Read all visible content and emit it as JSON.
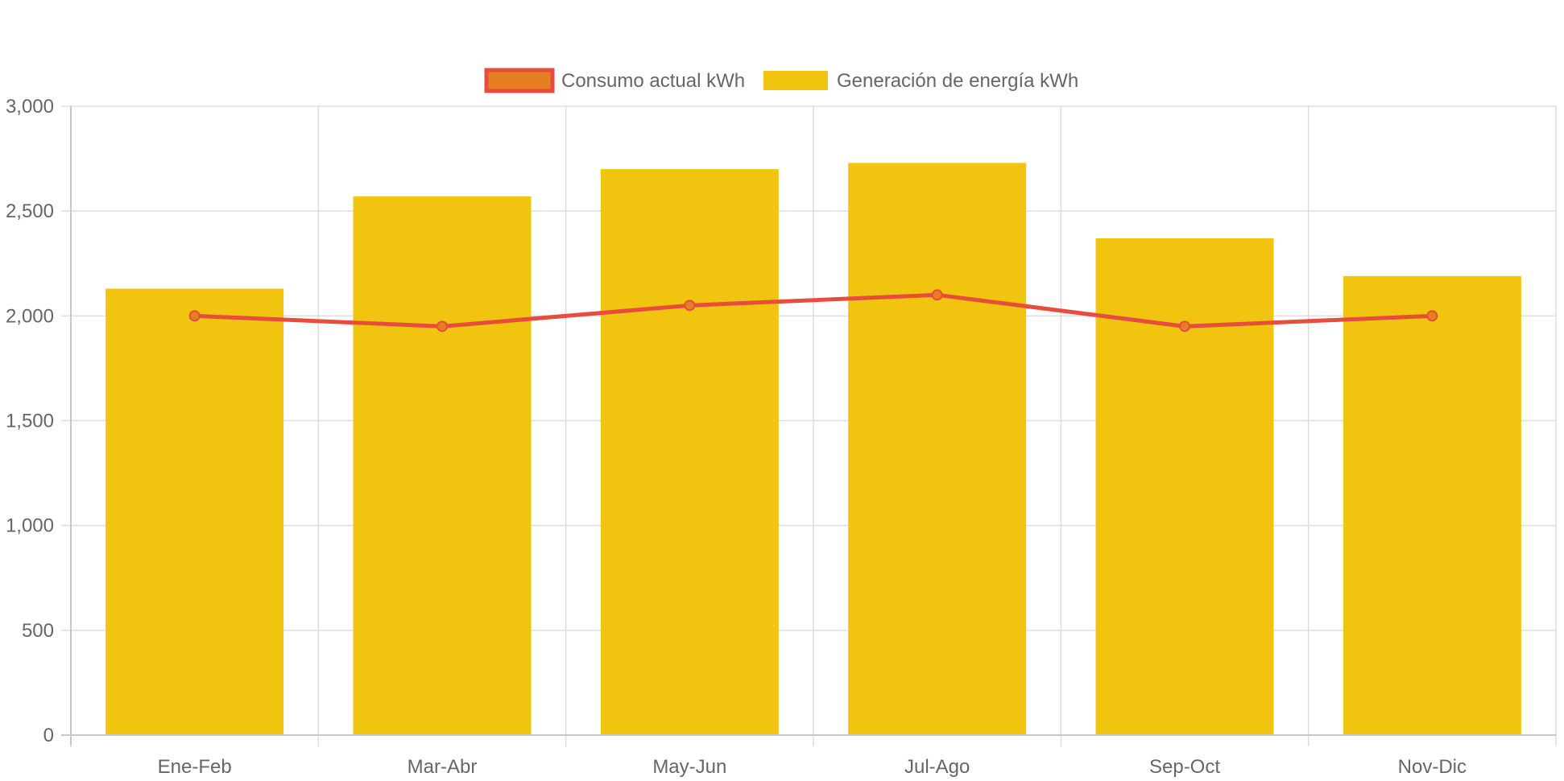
{
  "chart_data": {
    "type": "bar",
    "categories": [
      "Ene-Feb",
      "Mar-Abr",
      "May-Jun",
      "Jul-Ago",
      "Sep-Oct",
      "Nov-Dic"
    ],
    "series": [
      {
        "name": "Generación de energía kWh",
        "kind": "bar",
        "color": "#F0C40F",
        "values": [
          2130,
          2570,
          2700,
          2730,
          2370,
          2190
        ]
      },
      {
        "name": "Consumo actual kWh",
        "kind": "line",
        "color": "#E74C3C",
        "point_fill": "#E67E22",
        "values": [
          2000,
          1950,
          2050,
          2100,
          1950,
          2000
        ]
      }
    ],
    "legend_order": [
      "Consumo actual kWh",
      "Generación de energía kWh"
    ],
    "y_ticks": [
      "0",
      "500",
      "1,000",
      "1,500",
      "2,000",
      "2,500",
      "3,000"
    ],
    "ylim": [
      0,
      3000
    ],
    "grid": true,
    "legend_position": "top-center",
    "title": "",
    "xlabel": "",
    "ylabel": ""
  }
}
